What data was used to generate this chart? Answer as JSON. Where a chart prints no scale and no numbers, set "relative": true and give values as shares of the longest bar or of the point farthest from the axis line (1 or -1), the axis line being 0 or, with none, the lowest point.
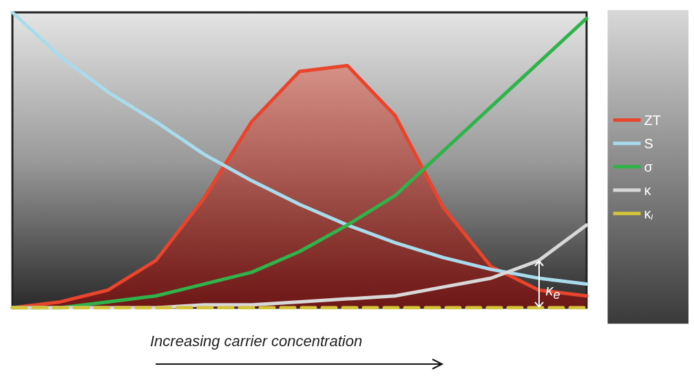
{
  "chart_data": {
    "type": "line",
    "relative": true,
    "xlabel": "Increasing carrier concentration",
    "categories": [
      null,
      null,
      null,
      null,
      null,
      null,
      null,
      null,
      null,
      null,
      null,
      null,
      null
    ],
    "series": [
      {
        "name": "ZT",
        "type": "area",
        "color": "#e8452c",
        "values": [
          0,
          0.02,
          0.06,
          0.16,
          0.37,
          0.63,
          0.8,
          0.82,
          0.65,
          0.34,
          0.14,
          0.06,
          0.04
        ]
      },
      {
        "name": "S",
        "color": "#a8dcec",
        "values": [
          1.0,
          0.85,
          0.73,
          0.63,
          0.52,
          0.43,
          0.35,
          0.28,
          0.22,
          0.17,
          0.13,
          0.1,
          0.08
        ]
      },
      {
        "name": "σ",
        "color": "#2fb34a",
        "values": [
          0,
          0,
          0.02,
          0.04,
          0.08,
          0.12,
          0.19,
          0.28,
          0.38,
          0.53,
          0.68,
          0.83,
          0.98
        ]
      },
      {
        "name": "κ",
        "color": "#d8d8d8",
        "values": [
          0,
          0,
          0,
          0,
          0.01,
          0.01,
          0.02,
          0.03,
          0.04,
          0.07,
          0.1,
          0.16,
          0.28
        ]
      },
      {
        "name": "κ$_{l}$",
        "color": "#d4c43a",
        "line_style": "dashed",
        "values": [
          0,
          0,
          0,
          0,
          0,
          0,
          0,
          0,
          0,
          0,
          0,
          0,
          0
        ]
      }
    ],
    "annotations": [
      "κ$_{e}$"
    ],
    "grid": false,
    "legend": "right",
    "marker": "none"
  }
}
